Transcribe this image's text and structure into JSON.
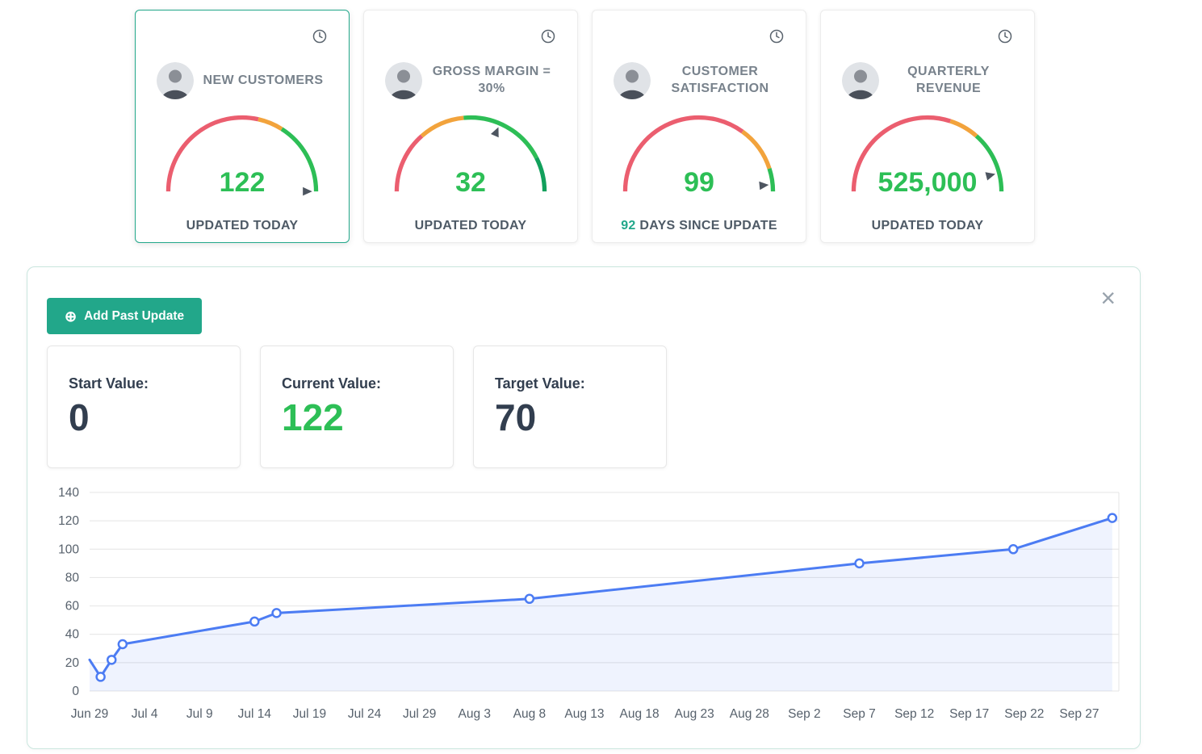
{
  "colors": {
    "accent_teal": "#22a78a",
    "value_green": "#2dbf56",
    "gauge_red": "#eb5e6f",
    "gauge_orange": "#f2a33c",
    "gauge_green": "#2dbe56",
    "gauge_dark_green": "#12a05c",
    "pointer_dark": "#4d5560",
    "chart_line_blue": "#4c7cf3",
    "grid_gray": "#e4e4e4",
    "axis_text": "#57616c"
  },
  "kpi_cards": [
    {
      "title": "NEW CUSTOMERS",
      "value": "122",
      "status_prefix": "",
      "status": "UPDATED TODAY",
      "selected": true,
      "gauge": {
        "segments": [
          {
            "color": "#eb5e6f",
            "to": 0.57
          },
          {
            "color": "#f2a33c",
            "to": 0.68
          },
          {
            "color": "#2dbe56",
            "to": 1.0
          }
        ],
        "pointer": 1.0
      }
    },
    {
      "title": "GROSS MARGIN = 30%",
      "value": "32",
      "status_prefix": "",
      "status": "UPDATED TODAY",
      "selected": false,
      "gauge": {
        "segments": [
          {
            "color": "#eb5e6f",
            "to": 0.27
          },
          {
            "color": "#f2a33c",
            "to": 0.47
          },
          {
            "color": "#2dbe56",
            "to": 0.85
          },
          {
            "color": "#12a05c",
            "to": 1.0
          }
        ],
        "pointer": 0.63
      }
    },
    {
      "title": "CUSTOMER SATISFACTION",
      "value": "99",
      "status_prefix": "92",
      "status": "DAYS SINCE UPDATE",
      "selected": false,
      "gauge": {
        "segments": [
          {
            "color": "#eb5e6f",
            "to": 0.7
          },
          {
            "color": "#f2a33c",
            "to": 0.9
          },
          {
            "color": "#2dbe56",
            "to": 1.0
          }
        ],
        "pointer": 0.97
      }
    },
    {
      "title": "QUARTERLY REVENUE",
      "value": "525,000",
      "status_prefix": "",
      "status": "UPDATED TODAY",
      "selected": false,
      "gauge": {
        "segments": [
          {
            "color": "#eb5e6f",
            "to": 0.6
          },
          {
            "color": "#f2a33c",
            "to": 0.73
          },
          {
            "color": "#2dbe56",
            "to": 1.0
          }
        ],
        "pointer": 0.92
      }
    }
  ],
  "panel": {
    "add_button_label": "Add Past Update",
    "add_icon": "⊕",
    "close_label": "×",
    "stats": [
      {
        "label": "Start Value:",
        "value": "0",
        "emphasis": false
      },
      {
        "label": "Current Value:",
        "value": "122",
        "emphasis": true
      },
      {
        "label": "Target Value:",
        "value": "70",
        "emphasis": false
      }
    ]
  },
  "chart_data": {
    "type": "area",
    "title": "",
    "xlabel": "",
    "ylabel": "",
    "ylim": [
      0,
      140
    ],
    "yticks": [
      0,
      20,
      40,
      60,
      80,
      100,
      120,
      140
    ],
    "grid": true,
    "legend": "none",
    "x_tick_labels": [
      "Jun 29",
      "Jul 4",
      "Jul 9",
      "Jul 14",
      "Jul 19",
      "Jul 24",
      "Jul 29",
      "Aug 3",
      "Aug 8",
      "Aug 13",
      "Aug 18",
      "Aug 23",
      "Aug 28",
      "Sep 2",
      "Sep 7",
      "Sep 12",
      "Sep 17",
      "Sep 22",
      "Sep 27"
    ],
    "x_tick_interval_days": 5,
    "line_color": "#4c7cf3",
    "fill_color": "#e9eefc",
    "points": [
      {
        "day": 0,
        "value": 22,
        "marker": false
      },
      {
        "day": 1,
        "value": 10,
        "marker": true
      },
      {
        "day": 2,
        "value": 22,
        "marker": true
      },
      {
        "day": 3,
        "value": 33,
        "marker": true
      },
      {
        "day": 15,
        "value": 49,
        "marker": true
      },
      {
        "day": 17,
        "value": 55,
        "marker": true
      },
      {
        "day": 40,
        "value": 65,
        "marker": true
      },
      {
        "day": 70,
        "value": 90,
        "marker": true
      },
      {
        "day": 84,
        "value": 100,
        "marker": true
      },
      {
        "day": 93,
        "value": 122,
        "marker": true
      }
    ]
  }
}
